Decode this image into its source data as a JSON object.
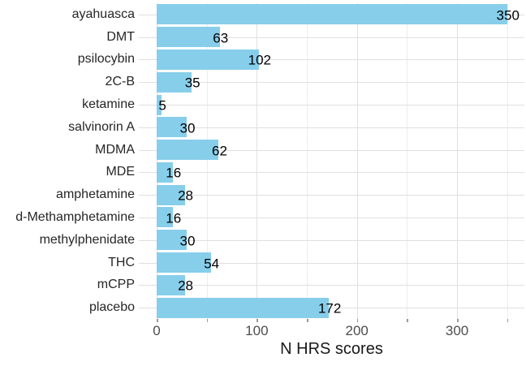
{
  "chart_data": {
    "type": "bar",
    "orientation": "horizontal",
    "title": "",
    "xlabel": "N HRS scores",
    "ylabel": "",
    "categories": [
      "ayahuasca",
      "DMT",
      "psilocybin",
      "2C-B",
      "ketamine",
      "salvinorin A",
      "MDMA",
      "MDE",
      "amphetamine",
      "d-Methamphetamine",
      "methylphenidate",
      "THC",
      "mCPP",
      "placebo"
    ],
    "values": [
      350,
      63,
      102,
      35,
      5,
      30,
      62,
      16,
      28,
      16,
      30,
      54,
      28,
      172
    ],
    "bar_labels": [
      "350",
      "63",
      "102",
      "35",
      "5",
      "30",
      "62",
      "16",
      "28",
      "16",
      "30",
      "54",
      "28",
      "172"
    ],
    "x_major_ticks": [
      0,
      100,
      200,
      300
    ],
    "x_minor_ticks": [
      50,
      150,
      250,
      350
    ],
    "xlim": [
      0,
      350
    ],
    "grid": "major and minor vertical gridlines, horizontal gridline per category",
    "legend_position": "none",
    "colors": {
      "bar": "#87CEEB",
      "grid_major": "#E0E0E0",
      "grid_minor": "#EDEDED",
      "axis_text": "#4D4D4D",
      "category_text": "#262626",
      "value_text": "#000000",
      "title_text": "#1A1A1A",
      "tick_mark": "#999999",
      "background": "#FFFFFF"
    }
  }
}
